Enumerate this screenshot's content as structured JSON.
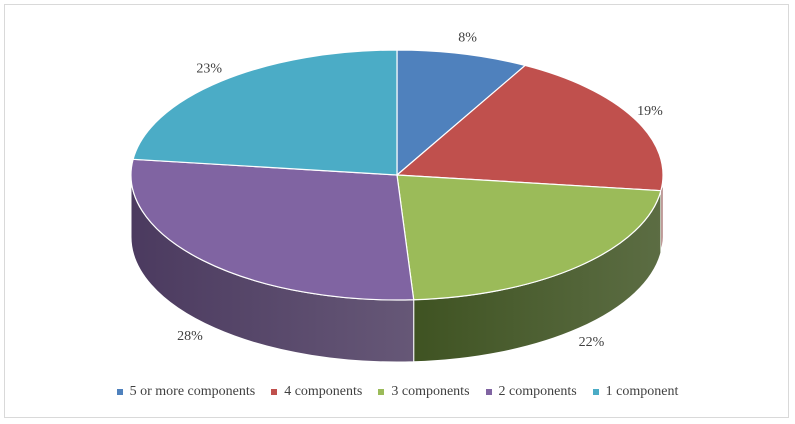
{
  "chart_data": {
    "type": "pie",
    "style": "3d",
    "title": "",
    "slices": [
      {
        "label": "5 or more components",
        "value": 8,
        "display": "8%",
        "color": "#4F81BD",
        "side": "#2C4A6E"
      },
      {
        "label": "4 components",
        "value": 19,
        "display": "19%",
        "color": "#C0504D",
        "side": "#7A2F2D"
      },
      {
        "label": "3 components",
        "value": 22,
        "display": "22%",
        "color": "#9BBB59",
        "side": "#3F5322"
      },
      {
        "label": "2 components",
        "value": 28,
        "display": "28%",
        "color": "#8064A2",
        "side": "#4B3A5F"
      },
      {
        "label": "1 component",
        "value": 23,
        "display": "23%",
        "color": "#4BACC6",
        "side": "#2A6877"
      }
    ],
    "legend_position": "bottom"
  }
}
